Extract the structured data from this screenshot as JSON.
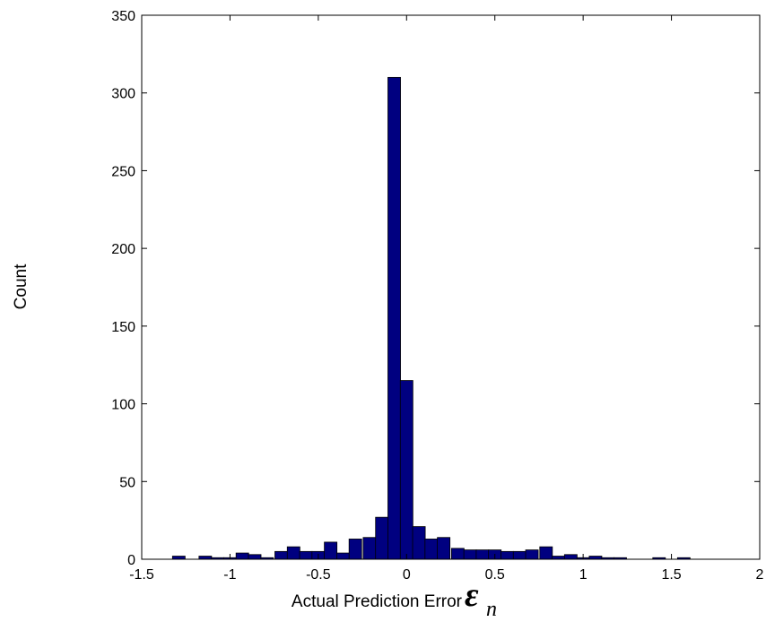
{
  "chart_data": {
    "type": "bar",
    "title": "",
    "xlabel": "Actual Prediction Error",
    "xlabel_symbol": "ε",
    "xlabel_subscript": "n",
    "ylabel": "Count",
    "xlim": [
      -1.5,
      2
    ],
    "ylim": [
      0,
      350
    ],
    "grid": false,
    "legend": "none",
    "bar_color": "#000080",
    "bar_edge_color": "#000000",
    "bin_width": 0.0714,
    "x_ticks": [
      "-1.5",
      "-1",
      "-0.5",
      "0",
      "0.5",
      "1",
      "1.5",
      "2"
    ],
    "y_ticks": [
      "0",
      "50",
      "100",
      "150",
      "200",
      "250",
      "300",
      "350"
    ],
    "bins": [
      {
        "x": -1.29,
        "count": 2
      },
      {
        "x": -1.21,
        "count": 0
      },
      {
        "x": -1.14,
        "count": 2
      },
      {
        "x": -1.07,
        "count": 1
      },
      {
        "x": -1.0,
        "count": 1
      },
      {
        "x": -0.93,
        "count": 4
      },
      {
        "x": -0.86,
        "count": 3
      },
      {
        "x": -0.79,
        "count": 1
      },
      {
        "x": -0.71,
        "count": 5
      },
      {
        "x": -0.64,
        "count": 8
      },
      {
        "x": -0.57,
        "count": 5
      },
      {
        "x": -0.5,
        "count": 5
      },
      {
        "x": -0.43,
        "count": 11
      },
      {
        "x": -0.36,
        "count": 4
      },
      {
        "x": -0.29,
        "count": 13
      },
      {
        "x": -0.21,
        "count": 14
      },
      {
        "x": -0.14,
        "count": 27
      },
      {
        "x": -0.07,
        "count": 310
      },
      {
        "x": 0.0,
        "count": 115
      },
      {
        "x": 0.07,
        "count": 21
      },
      {
        "x": 0.14,
        "count": 13
      },
      {
        "x": 0.21,
        "count": 14
      },
      {
        "x": 0.29,
        "count": 7
      },
      {
        "x": 0.36,
        "count": 6
      },
      {
        "x": 0.43,
        "count": 6
      },
      {
        "x": 0.5,
        "count": 6
      },
      {
        "x": 0.57,
        "count": 5
      },
      {
        "x": 0.64,
        "count": 5
      },
      {
        "x": 0.71,
        "count": 6
      },
      {
        "x": 0.79,
        "count": 8
      },
      {
        "x": 0.86,
        "count": 2
      },
      {
        "x": 0.93,
        "count": 3
      },
      {
        "x": 1.0,
        "count": 1
      },
      {
        "x": 1.07,
        "count": 2
      },
      {
        "x": 1.14,
        "count": 1
      },
      {
        "x": 1.21,
        "count": 1
      },
      {
        "x": 1.29,
        "count": 0
      },
      {
        "x": 1.36,
        "count": 0
      },
      {
        "x": 1.43,
        "count": 1
      },
      {
        "x": 1.5,
        "count": 0
      },
      {
        "x": 1.57,
        "count": 1
      },
      {
        "x": 1.64,
        "count": 0
      },
      {
        "x": 1.71,
        "count": 0
      },
      {
        "x": 1.79,
        "count": 0
      },
      {
        "x": 1.86,
        "count": 0
      },
      {
        "x": 1.93,
        "count": 0
      }
    ]
  }
}
